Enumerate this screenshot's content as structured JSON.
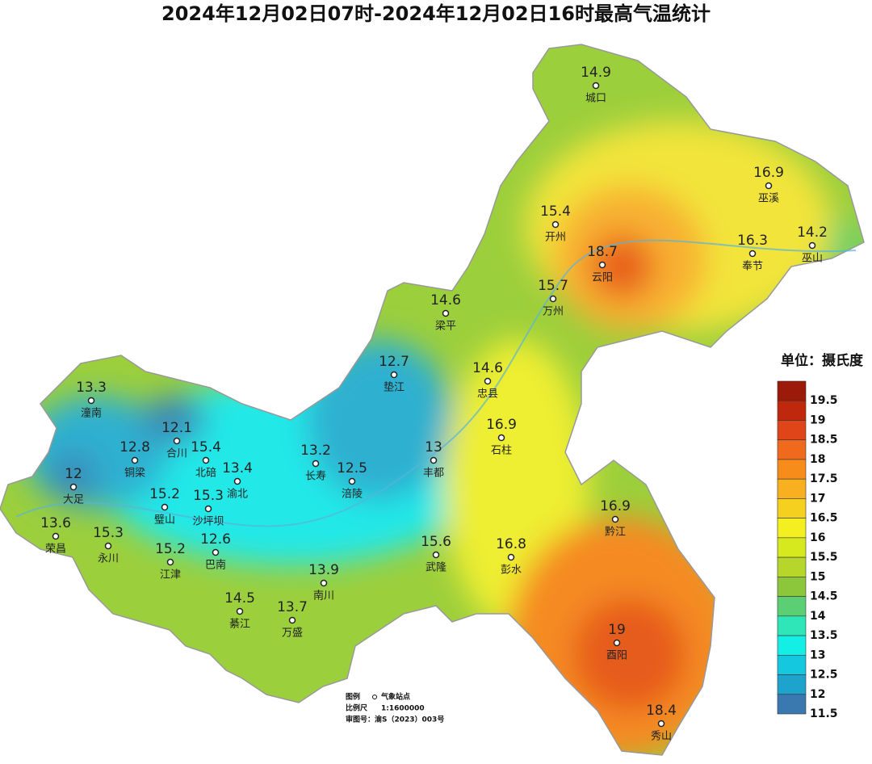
{
  "title": "2024年12月02日07时-2024年12月02日16时最高气温统计",
  "stations": [
    {
      "name": "城口",
      "value": 14.9
    },
    {
      "name": "巫溪",
      "value": 16.9
    },
    {
      "name": "开州",
      "value": 15.4
    },
    {
      "name": "云阳",
      "value": 18.7
    },
    {
      "name": "奉节",
      "value": 16.3
    },
    {
      "name": "巫山",
      "value": 14.2
    },
    {
      "name": "万州",
      "value": 15.7
    },
    {
      "name": "梁平",
      "value": 14.6
    },
    {
      "name": "垫江",
      "value": 12.7
    },
    {
      "name": "忠县",
      "value": 14.6
    },
    {
      "name": "潼南",
      "value": 13.3
    },
    {
      "name": "合川",
      "value": 12.1
    },
    {
      "name": "石柱",
      "value": 16.9
    },
    {
      "name": "铜梁",
      "value": 12.8
    },
    {
      "name": "北碚",
      "value": 15.4
    },
    {
      "name": "丰都",
      "value": 13
    },
    {
      "name": "长寿",
      "value": 13.2
    },
    {
      "name": "渝北",
      "value": 13.4
    },
    {
      "name": "涪陵",
      "value": 12.5
    },
    {
      "name": "大足",
      "value": 12
    },
    {
      "name": "璧山",
      "value": 15.2
    },
    {
      "name": "沙坪坝",
      "value": 15.3
    },
    {
      "name": "荣昌",
      "value": 13.6
    },
    {
      "name": "黔江",
      "value": 16.9
    },
    {
      "name": "巴南",
      "value": 12.6
    },
    {
      "name": "永川",
      "value": 15.3
    },
    {
      "name": "武隆",
      "value": 15.6
    },
    {
      "name": "彭水",
      "value": 16.8
    },
    {
      "name": "江津",
      "value": 15.2
    },
    {
      "name": "南川",
      "value": 13.9
    },
    {
      "name": "綦江",
      "value": 14.5
    },
    {
      "name": "万盛",
      "value": 13.7
    },
    {
      "name": "酉阳",
      "value": 19
    },
    {
      "name": "秀山",
      "value": 18.4
    }
  ],
  "legend": {
    "title": "单位：摄氏度",
    "labels": [
      19.5,
      19,
      18.5,
      18,
      17.5,
      17,
      16.5,
      16,
      15.5,
      15,
      14.5,
      14,
      13.5,
      13,
      12.5,
      12,
      11.5
    ],
    "colors": [
      "#9b1a0a",
      "#c0280e",
      "#e0451a",
      "#f06a1e",
      "#f88c1a",
      "#f9b020",
      "#f5d01e",
      "#f4ef20",
      "#d6e81e",
      "#b7d62c",
      "#8cc63a",
      "#5ccf74",
      "#2ee6b8",
      "#14efe6",
      "#14c8e0",
      "#1ea4cc",
      "#3a78b0"
    ]
  },
  "notes": {
    "legend_label": "图例",
    "legend_item": "气象站点",
    "scale_label": "比例尺",
    "scale": "1:1600000",
    "approval": "审图号：渝S（2023）003号"
  }
}
